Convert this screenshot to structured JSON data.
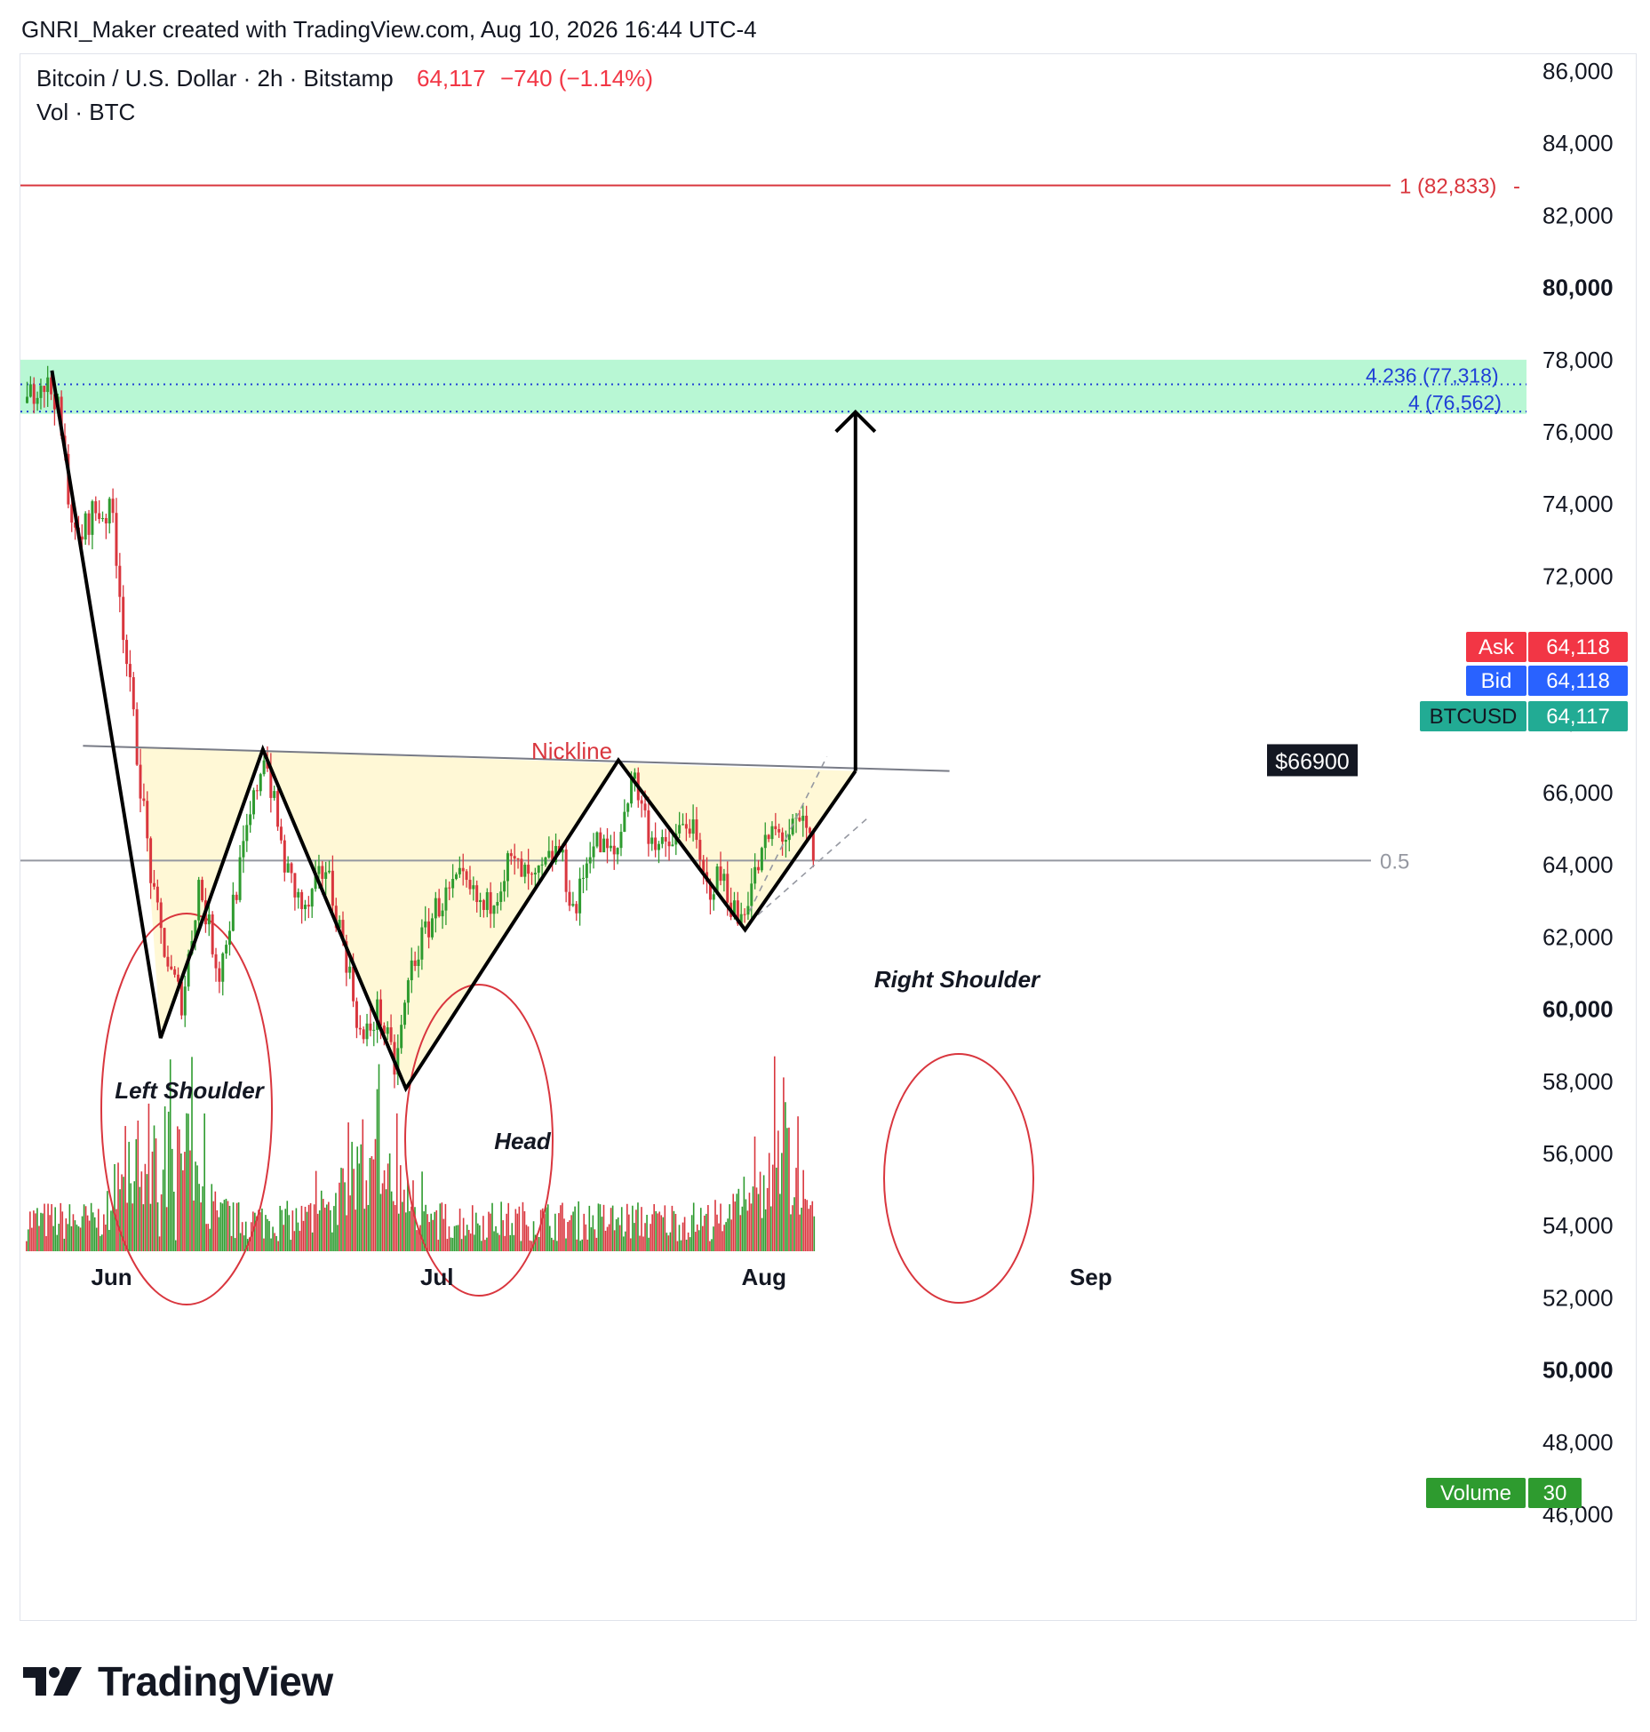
{
  "header": {
    "caption": "GNRI_Maker created with TradingView.com, Aug 10, 2026 16:44 UTC-4"
  },
  "legend": {
    "symbol": "Bitcoin / U.S. Dollar · 2h · Bitstamp",
    "price": "64,117",
    "change": "−740 (−1.14%)",
    "volume_label": "Vol · BTC"
  },
  "colors": {
    "up": "#2e9b2f",
    "down": "#d9363e",
    "neckline": "#d9363e",
    "zone": "#b8f7d4",
    "fib_blue": "#1f3fd6",
    "triangle_fill": "#fff8d6"
  },
  "chart_data": {
    "type": "candlestick",
    "symbol": "BTCUSD",
    "interval": "2h",
    "y_axis": {
      "min": 45000,
      "max": 87000,
      "ticks": [
        "86,000",
        "84,000",
        "82,000",
        "80,000",
        "78,000",
        "76,000",
        "74,000",
        "72,000",
        "70,000",
        "68,000",
        "66,000",
        "64,000",
        "62,000",
        "60,000",
        "58,000",
        "56,000",
        "54,000",
        "52,000",
        "50,000",
        "48,000",
        "46,000"
      ],
      "bold_ticks": [
        "80,000",
        "70,000",
        "60,000",
        "50,000"
      ]
    },
    "x_axis": {
      "ticks": [
        "Jun",
        "Jul",
        "Aug",
        "Sep"
      ]
    },
    "price_path": [
      {
        "t": 0,
        "v": 76800
      },
      {
        "t": 1.5,
        "v": 77500
      },
      {
        "t": 3.5,
        "v": 77000
      },
      {
        "t": 6,
        "v": 72800
      },
      {
        "t": 8,
        "v": 73800
      },
      {
        "t": 10.5,
        "v": 73700
      },
      {
        "t": 12,
        "v": 70000
      },
      {
        "t": 13.5,
        "v": 67000
      },
      {
        "t": 15.5,
        "v": 63000
      },
      {
        "t": 17.5,
        "v": 61000
      },
      {
        "t": 19,
        "v": 60200
      },
      {
        "t": 21,
        "v": 63500
      },
      {
        "t": 23.5,
        "v": 61000
      },
      {
        "t": 26,
        "v": 63800
      },
      {
        "t": 29,
        "v": 67200
      },
      {
        "t": 31.5,
        "v": 64000
      },
      {
        "t": 34,
        "v": 62600
      },
      {
        "t": 36.5,
        "v": 64000
      },
      {
        "t": 39,
        "v": 61500
      },
      {
        "t": 41,
        "v": 59000
      },
      {
        "t": 43,
        "v": 60000
      },
      {
        "t": 45,
        "v": 58300
      },
      {
        "t": 47,
        "v": 61200
      },
      {
        "t": 50,
        "v": 62800
      },
      {
        "t": 53,
        "v": 63500
      },
      {
        "t": 56,
        "v": 62700
      },
      {
        "t": 59,
        "v": 64100
      },
      {
        "t": 62,
        "v": 63400
      },
      {
        "t": 65,
        "v": 64500
      },
      {
        "t": 67,
        "v": 62600
      },
      {
        "t": 69,
        "v": 64700
      },
      {
        "t": 72,
        "v": 64200
      },
      {
        "t": 74,
        "v": 66600
      },
      {
        "t": 76,
        "v": 65000
      },
      {
        "t": 78,
        "v": 64300
      },
      {
        "t": 81,
        "v": 65300
      },
      {
        "t": 83,
        "v": 63300
      },
      {
        "t": 85,
        "v": 63700
      },
      {
        "t": 87,
        "v": 62400
      },
      {
        "t": 89,
        "v": 63700
      },
      {
        "t": 91,
        "v": 64900
      },
      {
        "t": 93,
        "v": 64800
      },
      {
        "t": 95,
        "v": 65100
      },
      {
        "t": 96.5,
        "v": 64117
      }
    ],
    "pattern": {
      "neckline_label": "Nickline",
      "neckline": [
        {
          "t": 7,
          "v": 67300
        },
        {
          "t": 113,
          "v": 66600
        }
      ],
      "zigzag": [
        {
          "t": 3.2,
          "v": 77700
        },
        {
          "t": 16.5,
          "v": 59200
        },
        {
          "t": 29,
          "v": 67200
        },
        {
          "t": 46.5,
          "v": 57800
        },
        {
          "t": 72.5,
          "v": 66900
        },
        {
          "t": 88,
          "v": 62200
        },
        {
          "t": 101.5,
          "v": 66600
        }
      ],
      "labels": {
        "left_shoulder": "Left Shoulder",
        "head": "Head",
        "right_shoulder": "Right Shoulder"
      },
      "target_arrow": {
        "t": 101.5,
        "from": 66600,
        "to": 76550
      },
      "target_label": "$66900"
    },
    "fib_levels": [
      {
        "label": "1 (82,833)",
        "value": 82833,
        "color": "#d9363e"
      },
      {
        "label": "4.236 (77,318)",
        "value": 77318,
        "color": "#1f3fd6"
      },
      {
        "label": "4 (76,562)",
        "value": 76562,
        "color": "#1f3fd6"
      },
      {
        "label": "0.5",
        "value": 64120,
        "color": "#9598a1"
      }
    ],
    "target_zone": {
      "low": 76500,
      "high": 78000
    },
    "price_badges": [
      {
        "name": "Ask",
        "value": "64,118",
        "color": "#f23645"
      },
      {
        "name": "Bid",
        "value": "64,118",
        "color": "#2962ff"
      },
      {
        "name": "BTCUSD",
        "value": "64,117",
        "color": "#22ab94"
      }
    ],
    "volume": {
      "label": "Volume",
      "value": "30",
      "spike_clusters": [
        {
          "t": 17,
          "peak": 0.92
        },
        {
          "t": 42,
          "peak": 0.72
        },
        {
          "t": 92,
          "peak": 0.52
        }
      ]
    }
  },
  "branding": {
    "logo_text": "TradingView"
  }
}
